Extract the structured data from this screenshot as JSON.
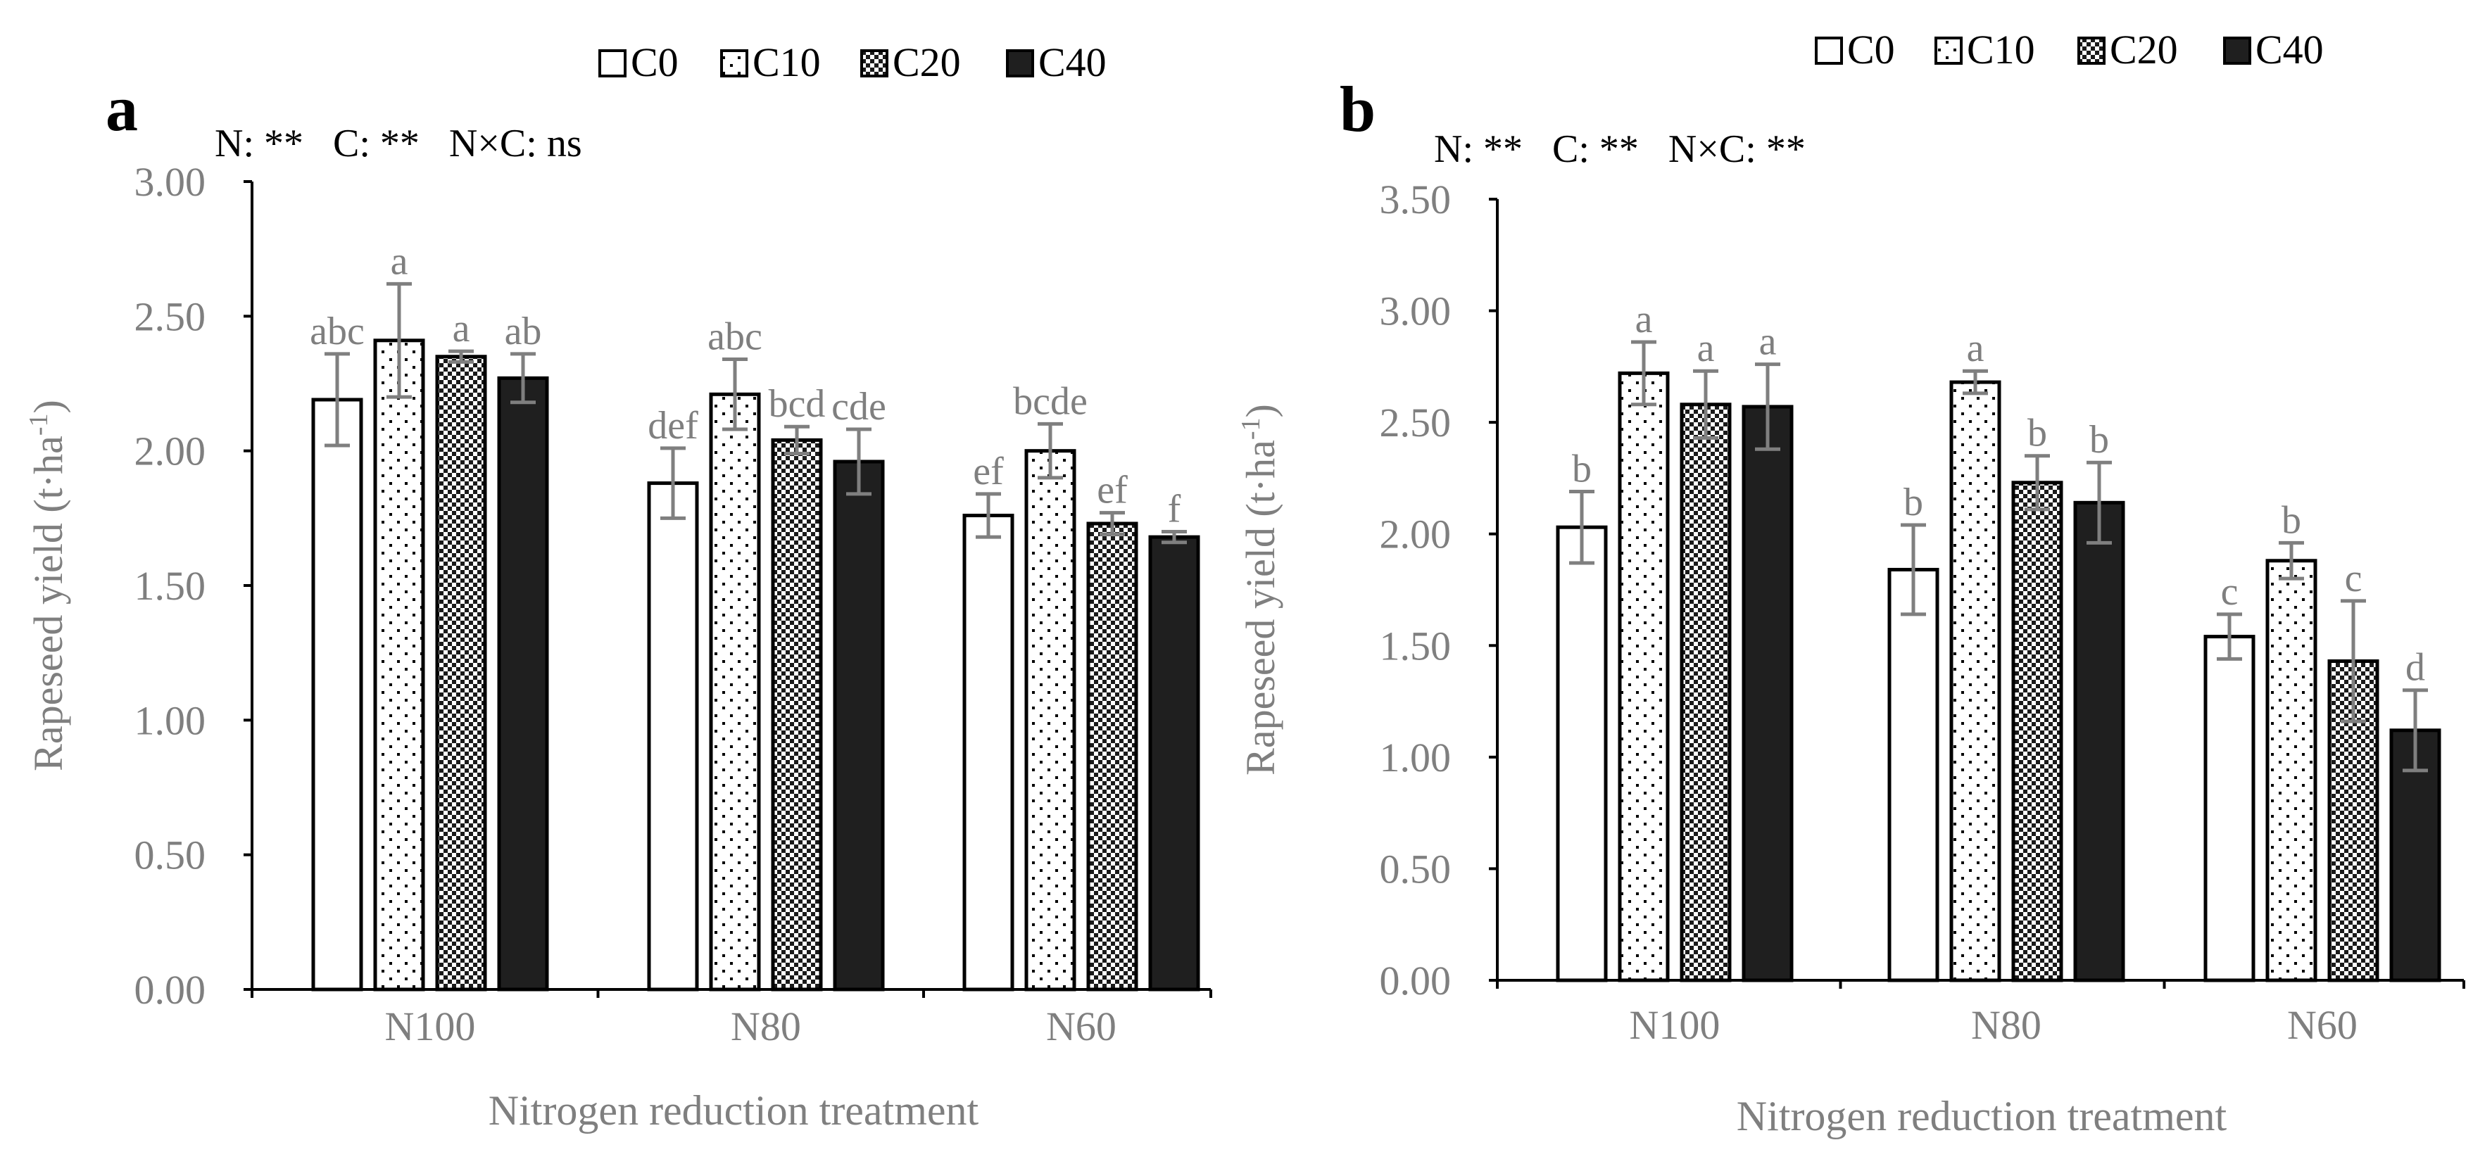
{
  "chart_data": [
    {
      "type": "bar",
      "panel": "a",
      "stats": "N: **   C: **   N×C: ns",
      "xlabel": "Nitrogen reduction treatment",
      "ylabel": "Rapeseed yield (t·ha-1)",
      "ylabel_main": "Rapeseed yield (t·ha",
      "ylabel_sup": "-1",
      "ylabel_close": ")",
      "ylim": [
        0,
        3
      ],
      "yticks": [
        "0.00",
        "0.50",
        "1.00",
        "1.50",
        "2.00",
        "2.50",
        "3.00"
      ],
      "grid": false,
      "legend_position": "top",
      "categories": [
        "N100",
        "N80",
        "N60"
      ],
      "series": [
        {
          "name": "C0",
          "pattern": "white",
          "values": [
            2.19,
            1.88,
            1.76
          ],
          "errors": [
            0.17,
            0.13,
            0.08
          ],
          "letters": [
            "abc",
            "def",
            "ef"
          ]
        },
        {
          "name": "C10",
          "pattern": "dots",
          "values": [
            2.41,
            2.21,
            2.0
          ],
          "errors": [
            0.21,
            0.13,
            0.1
          ],
          "letters": [
            "a",
            "abc",
            "bcde"
          ]
        },
        {
          "name": "C20",
          "pattern": "checker",
          "values": [
            2.35,
            2.04,
            1.73
          ],
          "errors": [
            0.02,
            0.05,
            0.04
          ],
          "letters": [
            "a",
            "bcd",
            "ef"
          ]
        },
        {
          "name": "C40",
          "pattern": "black",
          "values": [
            2.27,
            1.96,
            1.68
          ],
          "errors": [
            0.09,
            0.12,
            0.02
          ],
          "letters": [
            "ab",
            "cde",
            "f"
          ]
        }
      ]
    },
    {
      "type": "bar",
      "panel": "b",
      "stats": "N: **   C: **   N×C: **",
      "xlabel": "Nitrogen reduction treatment",
      "ylabel": "Rapeseed yield (t·ha-1)",
      "ylabel_main": "Rapeseed yield (t·ha",
      "ylabel_sup": "-1",
      "ylabel_close": ")",
      "ylim": [
        0,
        3.5
      ],
      "yticks": [
        "0.00",
        "0.50",
        "1.00",
        "1.50",
        "2.00",
        "2.50",
        "3.00",
        "3.50"
      ],
      "grid": false,
      "legend_position": "top",
      "categories": [
        "N100",
        "N80",
        "N60"
      ],
      "series": [
        {
          "name": "C0",
          "pattern": "white",
          "values": [
            2.03,
            1.84,
            1.54
          ],
          "errors": [
            0.16,
            0.2,
            0.1
          ],
          "letters": [
            "b",
            "b",
            "c"
          ]
        },
        {
          "name": "C10",
          "pattern": "dots",
          "values": [
            2.72,
            2.68,
            1.88
          ],
          "errors": [
            0.14,
            0.05,
            0.08
          ],
          "letters": [
            "a",
            "a",
            "b"
          ]
        },
        {
          "name": "C20",
          "pattern": "checker",
          "values": [
            2.58,
            2.23,
            1.43
          ],
          "errors": [
            0.15,
            0.12,
            0.27
          ],
          "letters": [
            "a",
            "b",
            "c"
          ]
        },
        {
          "name": "C40",
          "pattern": "black",
          "values": [
            2.57,
            2.14,
            1.12
          ],
          "errors": [
            0.19,
            0.18,
            0.18
          ],
          "letters": [
            "a",
            "b",
            "d"
          ]
        }
      ]
    }
  ]
}
